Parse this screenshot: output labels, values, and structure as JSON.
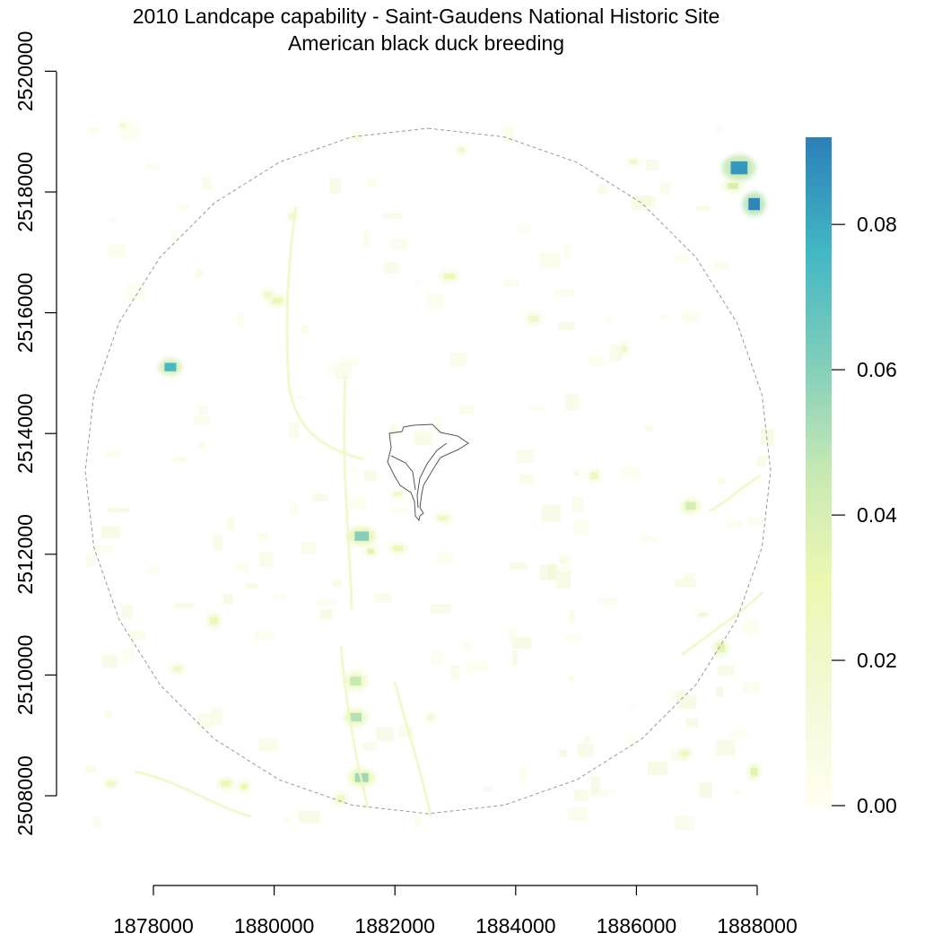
{
  "title": {
    "line1": "2010 Landcape capability - Saint-Gaudens National Historic Site",
    "line2": "American black duck breeding"
  },
  "colors": {
    "scale": [
      "#fffff0",
      "#f2f9d6",
      "#edf8b1",
      "#c7e9b4",
      "#7fcdbb",
      "#41b6c4",
      "#2c7fb8"
    ],
    "boundary": "#555555",
    "buffer": "#999999"
  },
  "chart_data": {
    "type": "heatmap",
    "title": "2010 Landcape capability - Saint-Gaudens National Historic Site",
    "subtitle": "American black duck breeding",
    "x_axis": {
      "range": [
        1877000,
        1888000
      ],
      "ticks": [
        1878000,
        1880000,
        1882000,
        1884000,
        1886000,
        1888000
      ],
      "tick_labels": [
        "1878000",
        "1880000",
        "1882000",
        "1884000",
        "1886000",
        "1888000"
      ]
    },
    "y_axis": {
      "range": [
        2506000,
        2521000
      ],
      "ticks": [
        2508000,
        2510000,
        2512000,
        2514000,
        2516000,
        2518000,
        2520000
      ],
      "tick_labels": [
        "2508000",
        "2510000",
        "2512000",
        "2514000",
        "2516000",
        "2518000",
        "2520000"
      ]
    },
    "legend": {
      "placement": "right",
      "range": [
        0,
        0.092
      ],
      "ticks": [
        0,
        0.02,
        0.04,
        0.06,
        0.08
      ],
      "tick_labels": [
        "0.00",
        "0.02",
        "0.04",
        "0.06",
        "0.08"
      ]
    },
    "grid": false,
    "patches": [
      {
        "x": 1878280,
        "y": 2515100,
        "value": 0.075
      },
      {
        "x": 1881450,
        "y": 2512300,
        "value": 0.06
      },
      {
        "x": 1881600,
        "y": 2512050,
        "value": 0.035
      },
      {
        "x": 1882050,
        "y": 2512100,
        "value": 0.03
      },
      {
        "x": 1887700,
        "y": 2518400,
        "value": 0.085
      },
      {
        "x": 1887950,
        "y": 2517800,
        "value": 0.09
      },
      {
        "x": 1887600,
        "y": 2518100,
        "value": 0.04
      },
      {
        "x": 1881350,
        "y": 2509300,
        "value": 0.05
      },
      {
        "x": 1881450,
        "y": 2508300,
        "value": 0.055
      },
      {
        "x": 1881350,
        "y": 2509900,
        "value": 0.045
      },
      {
        "x": 1880050,
        "y": 2516200,
        "value": 0.03
      },
      {
        "x": 1882900,
        "y": 2516600,
        "value": 0.03
      },
      {
        "x": 1887950,
        "y": 2508400,
        "value": 0.035
      },
      {
        "x": 1887400,
        "y": 2510450,
        "value": 0.035
      },
      {
        "x": 1886900,
        "y": 2512800,
        "value": 0.04
      },
      {
        "x": 1882800,
        "y": 2512600,
        "value": 0.025
      },
      {
        "x": 1882050,
        "y": 2513000,
        "value": 0.02
      },
      {
        "x": 1878400,
        "y": 2510100,
        "value": 0.025
      },
      {
        "x": 1879500,
        "y": 2508150,
        "value": 0.03
      },
      {
        "x": 1881100,
        "y": 2507950,
        "value": 0.025
      },
      {
        "x": 1885950,
        "y": 2518500,
        "value": 0.025
      },
      {
        "x": 1883100,
        "y": 2518700,
        "value": 0.02
      },
      {
        "x": 1884300,
        "y": 2515900,
        "value": 0.02
      },
      {
        "x": 1885300,
        "y": 2513300,
        "value": 0.025
      },
      {
        "x": 1885800,
        "y": 2515400,
        "value": 0.02
      },
      {
        "x": 1879900,
        "y": 2516300,
        "value": 0.02
      },
      {
        "x": 1880300,
        "y": 2517600,
        "value": 0.02
      },
      {
        "x": 1879000,
        "y": 2510900,
        "value": 0.03
      },
      {
        "x": 1879200,
        "y": 2508200,
        "value": 0.03
      },
      {
        "x": 1886800,
        "y": 2508700,
        "value": 0.025
      },
      {
        "x": 1882600,
        "y": 2509300,
        "value": 0.015
      },
      {
        "x": 1887100,
        "y": 2511000,
        "value": 0.015
      },
      {
        "x": 1877300,
        "y": 2508200,
        "value": 0.02
      },
      {
        "x": 1877500,
        "y": 2519100,
        "value": 0.015
      },
      {
        "x": 1884800,
        "y": 2511900,
        "value": 0.01
      },
      {
        "x": 1878800,
        "y": 2513800,
        "value": 0.008
      },
      {
        "x": 1883200,
        "y": 2510500,
        "value": 0.01
      }
    ]
  }
}
